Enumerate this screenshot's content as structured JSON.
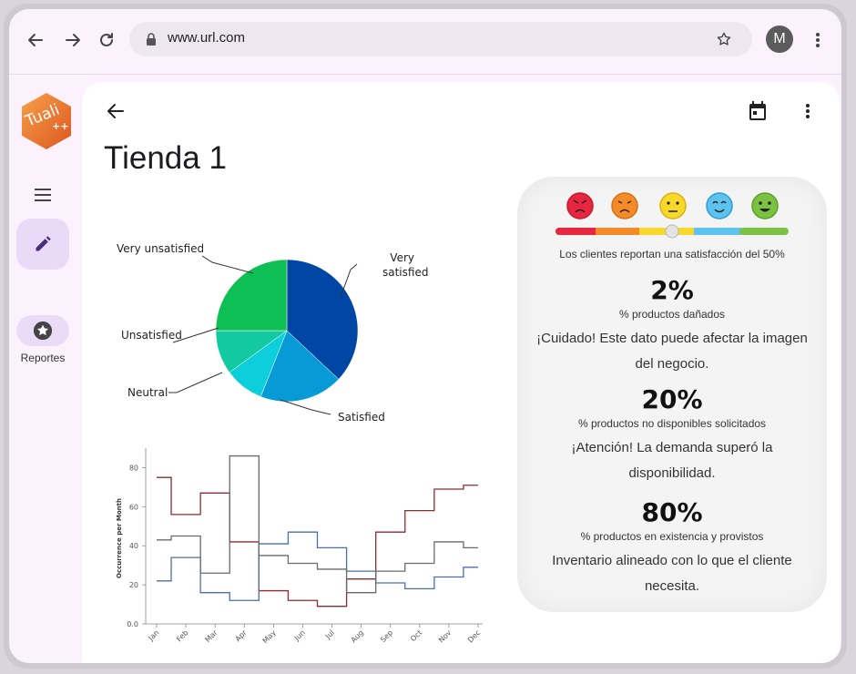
{
  "browser": {
    "url": "www.url.com",
    "avatar_letter": "M"
  },
  "rail": {
    "logo_text": "Tuali",
    "logo_sub": "++",
    "reportes_label": "Reportes"
  },
  "page": {
    "title": "Tienda 1"
  },
  "satisfaction": {
    "faces": [
      "very-dissatisfied",
      "dissatisfied",
      "neutral",
      "satisfied",
      "very-satisfied"
    ],
    "level": 0.5,
    "text": "Los clientes reportan una satisfacción del 50%"
  },
  "metrics": [
    {
      "value": "2%",
      "label": "% productos dañados",
      "message": "¡Cuidado! Este dato puede afectar la imagen del negocio."
    },
    {
      "value": "20%",
      "label": "% productos no disponibles solicitados",
      "message": "¡Atención! La demanda superó la disponibilidad."
    },
    {
      "value": "80%",
      "label": "% productos en existencia y provistos",
      "message": "Inventario alineado con lo que el cliente necesita."
    }
  ],
  "chart_data": [
    {
      "type": "pie",
      "categories": [
        "Very satisfied",
        "Satisfied",
        "Neutral",
        "Unsatisfied",
        "Very unsatisfied"
      ],
      "values": [
        37,
        19,
        9,
        10,
        25
      ],
      "colors": [
        "#0046a5",
        "#079ad6",
        "#0ccfdb",
        "#12c9a1",
        "#0dbf55"
      ]
    },
    {
      "type": "line",
      "step": true,
      "categories": [
        "Jan",
        "Feb",
        "Mar",
        "Apr",
        "May",
        "Jun",
        "Jul",
        "Aug",
        "Sep",
        "Oct",
        "Nov",
        "Dec"
      ],
      "ylabel": "Occurrence per Month",
      "yticks": [
        "0.0",
        "20",
        "40",
        "60",
        "80"
      ],
      "ylim": [
        0,
        90
      ],
      "series": [
        {
          "color": "#8f2a33",
          "values": [
            75,
            56,
            67,
            42,
            17,
            12,
            9,
            23,
            47,
            58,
            69,
            71
          ]
        },
        {
          "color": "#4c6eac",
          "values": [
            22,
            34,
            16,
            12,
            41,
            47,
            39,
            27,
            21,
            18,
            24,
            29
          ]
        },
        {
          "color": "#6a6a6a",
          "values": [
            43,
            45,
            26,
            86,
            35,
            31,
            28,
            16,
            27,
            31,
            42,
            39
          ]
        }
      ]
    }
  ]
}
